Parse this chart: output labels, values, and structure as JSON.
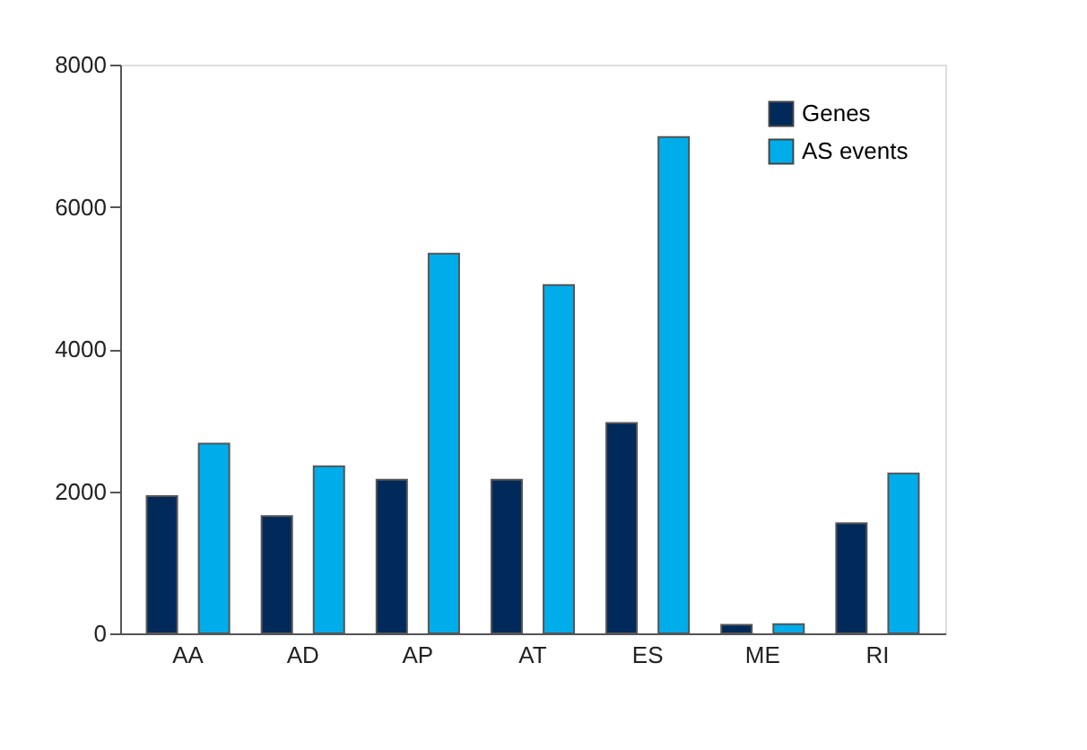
{
  "chart_data": {
    "type": "bar",
    "categories": [
      "AA",
      "AD",
      "AP",
      "AT",
      "ES",
      "ME",
      "RI"
    ],
    "series": [
      {
        "name": "Genes",
        "color": "#012a5a",
        "values": [
          1930,
          1650,
          2160,
          2160,
          2960,
          120,
          1550
        ]
      },
      {
        "name": "AS events",
        "color": "#00adeb",
        "values": [
          2670,
          2350,
          5340,
          4900,
          6980,
          130,
          2250
        ]
      }
    ],
    "ylim": [
      0,
      8000
    ],
    "yticks": [
      0,
      2000,
      4000,
      6000,
      8000
    ],
    "grid": false,
    "legend": "top right"
  }
}
